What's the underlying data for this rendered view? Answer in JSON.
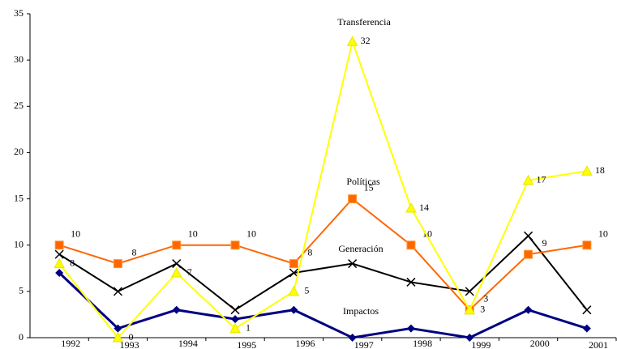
{
  "chart_data": {
    "type": "line",
    "categories": [
      "1992",
      "1993",
      "1994",
      "1995",
      "1996",
      "1997",
      "1998",
      "1999",
      "2000",
      "2001"
    ],
    "ylim": [
      0,
      35
    ],
    "yticks": [
      0,
      5,
      10,
      15,
      20,
      25,
      30,
      35
    ],
    "grid": false,
    "series": [
      {
        "name": "Impactos",
        "color": "#000080",
        "marker": "diamond",
        "data_labels": false,
        "values": [
          7,
          1,
          3,
          2,
          3,
          0,
          1,
          0,
          3,
          1
        ]
      },
      {
        "name": "Generación",
        "color": "#000000",
        "marker": "x",
        "data_labels": false,
        "values": [
          9,
          5,
          8,
          3,
          7,
          8,
          6,
          5,
          11,
          3
        ]
      },
      {
        "name": "Políticas",
        "color": "#ff6600",
        "marker": "square",
        "data_labels": true,
        "values": [
          10,
          8,
          10,
          10,
          8,
          15,
          10,
          3,
          9,
          10
        ]
      },
      {
        "name": "Transferencia",
        "color": "#ffff00",
        "marker": "triangle",
        "data_labels": true,
        "values": [
          8,
          0,
          7,
          1,
          5,
          32,
          14,
          3,
          17,
          18
        ]
      }
    ]
  }
}
